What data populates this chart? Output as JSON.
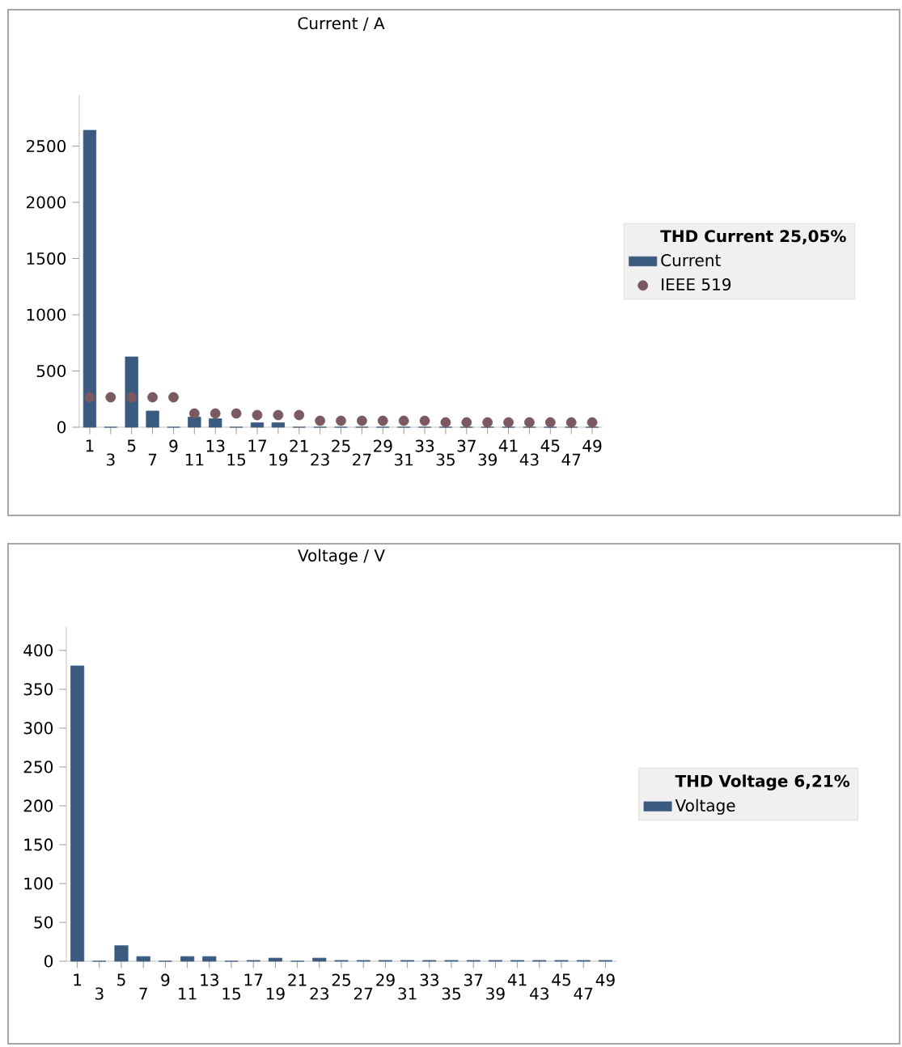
{
  "chart_data": [
    {
      "type": "bar",
      "title": "Current / A",
      "legend_title": "THD Current 25,05%",
      "categories": [
        "1",
        "3",
        "5",
        "7",
        "9",
        "11",
        "13",
        "15",
        "17",
        "19",
        "21",
        "23",
        "25",
        "27",
        "29",
        "31",
        "33",
        "35",
        "37",
        "39",
        "41",
        "43",
        "45",
        "47",
        "49"
      ],
      "series": [
        {
          "name": "Current",
          "color": "#3b5a80",
          "values": [
            2640,
            0,
            625,
            144,
            0,
            90,
            75,
            0,
            40,
            40,
            0,
            0,
            0,
            0,
            0,
            0,
            0,
            0,
            0,
            0,
            0,
            0,
            0,
            0,
            0
          ]
        },
        {
          "name": "IEEE 519",
          "type": "scatter",
          "color": "#7a5a60",
          "values": [
            266,
            266,
            266,
            266,
            266,
            122,
            122,
            122,
            108,
            108,
            108,
            57,
            57,
            57,
            57,
            57,
            57,
            43,
            43,
            43,
            43,
            43,
            43,
            43,
            43
          ]
        }
      ],
      "ylim": [
        0,
        2950
      ],
      "yticks": [
        0,
        500,
        1000,
        1500,
        2000,
        2500
      ],
      "legend": "right",
      "marker": "circle"
    },
    {
      "type": "bar",
      "title": "Voltage / V",
      "legend_title": "THD Voltage 6,21%",
      "categories": [
        "1",
        "3",
        "5",
        "7",
        "9",
        "11",
        "13",
        "15",
        "17",
        "19",
        "21",
        "23",
        "25",
        "27",
        "29",
        "31",
        "33",
        "35",
        "37",
        "39",
        "41",
        "43",
        "45",
        "47",
        "49"
      ],
      "series": [
        {
          "name": "Voltage",
          "color": "#3b5a80",
          "values": [
            380,
            0,
            20,
            6,
            0,
            6,
            6,
            0,
            1,
            4,
            0,
            4,
            1,
            1,
            1,
            1,
            1,
            1,
            1,
            1,
            1,
            1,
            1,
            1,
            1
          ]
        }
      ],
      "ylim": [
        0,
        430
      ],
      "yticks": [
        0,
        50,
        100,
        150,
        200,
        250,
        300,
        350,
        400
      ],
      "legend": "right"
    }
  ]
}
